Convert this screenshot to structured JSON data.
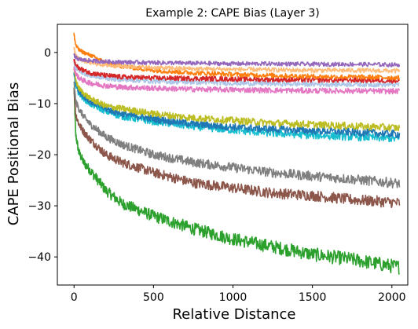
{
  "chart_data": {
    "type": "line",
    "title": "Example 2: CAPE Bias (Layer 3)",
    "xlabel": "Relative Distance",
    "ylabel": "CAPE Positional Bias",
    "xlim": [
      -105,
      2100
    ],
    "ylim": [
      -45.5,
      5.5
    ],
    "xticks": [
      0,
      500,
      1000,
      1500,
      2000
    ],
    "yticks": [
      0,
      -10,
      -20,
      -30,
      -40
    ],
    "grid": false,
    "legend": "none",
    "series": [
      {
        "color": "#2ca02c",
        "x": [
          0,
          10,
          30,
          60,
          100,
          200,
          300,
          500,
          750,
          1000,
          1250,
          1500,
          1750,
          2000,
          2048
        ],
        "y": [
          -7,
          -16,
          -19.5,
          -21.5,
          -23,
          -27,
          -29.5,
          -32,
          -34.5,
          -36.5,
          -38,
          -39.5,
          -40.5,
          -41.8,
          -42
        ]
      },
      {
        "color": "#8c564b",
        "x": [
          0,
          10,
          30,
          60,
          100,
          200,
          300,
          500,
          750,
          1000,
          1250,
          1500,
          1750,
          2000,
          2048
        ],
        "y": [
          -7,
          -12,
          -14,
          -15.5,
          -17,
          -20,
          -21.5,
          -23.5,
          -25.5,
          -26.5,
          -27.5,
          -28,
          -28.8,
          -29.3,
          -29.5
        ]
      },
      {
        "color": "#7f7f7f",
        "x": [
          0,
          10,
          30,
          60,
          100,
          200,
          300,
          500,
          750,
          1000,
          1250,
          1500,
          1750,
          2000,
          2048
        ],
        "y": [
          -6,
          -9.5,
          -11,
          -12.5,
          -14,
          -16.5,
          -18,
          -20,
          -21.5,
          -22.5,
          -23.5,
          -24.2,
          -24.8,
          -25.5,
          -25.7
        ]
      },
      {
        "color": "#17becf",
        "x": [
          0,
          10,
          30,
          60,
          100,
          200,
          300,
          500,
          750,
          1000,
          1250,
          1500,
          1750,
          2000,
          2048
        ],
        "y": [
          -4,
          -6.5,
          -8,
          -9,
          -10,
          -11.5,
          -12.5,
          -13.5,
          -14.5,
          -15.2,
          -15.8,
          -16.2,
          -16.5,
          -16.8,
          -17
        ]
      },
      {
        "color": "#1f77b4",
        "x": [
          0,
          10,
          30,
          60,
          100,
          200,
          300,
          500,
          750,
          1000,
          1250,
          1500,
          1750,
          2000,
          2048
        ],
        "y": [
          -4,
          -6,
          -7.5,
          -8.5,
          -9.5,
          -11,
          -12,
          -13,
          -14,
          -14.6,
          -15,
          -15.3,
          -15.6,
          -15.9,
          -16
        ]
      },
      {
        "color": "#bcbd22",
        "x": [
          0,
          10,
          30,
          60,
          100,
          200,
          300,
          500,
          750,
          1000,
          1250,
          1500,
          1750,
          2000,
          2048
        ],
        "y": [
          -3,
          -5.5,
          -7,
          -8,
          -9,
          -10.5,
          -11,
          -12,
          -12.8,
          -13.3,
          -13.8,
          -14.1,
          -14.4,
          -14.7,
          -14.8
        ]
      },
      {
        "color": "#e377c2",
        "x": [
          0,
          10,
          30,
          60,
          100,
          200,
          300,
          500,
          750,
          1000,
          1250,
          1500,
          1750,
          2000,
          2048
        ],
        "y": [
          -3,
          -4,
          -5,
          -5.5,
          -6,
          -6.5,
          -6.8,
          -7,
          -7.2,
          -7.3,
          -7.4,
          -7.5,
          -7.5,
          -7.6,
          -7.6
        ]
      },
      {
        "color": "#aec7e8",
        "x": [
          0,
          10,
          30,
          60,
          100,
          200,
          300,
          500,
          750,
          1000,
          1250,
          1500,
          1750,
          2000,
          2048
        ],
        "y": [
          -2,
          -3,
          -3.5,
          -4,
          -4.5,
          -5,
          -5.3,
          -5.6,
          -5.8,
          -6,
          -6.1,
          -6.2,
          -6.2,
          -6.3,
          -6.3
        ]
      },
      {
        "color": "#d62728",
        "x": [
          0,
          10,
          30,
          60,
          100,
          200,
          300,
          500,
          750,
          1000,
          1250,
          1500,
          1750,
          2000,
          2048
        ],
        "y": [
          -1.5,
          -2.5,
          -3,
          -3.5,
          -4,
          -4.5,
          -4.8,
          -5,
          -5.1,
          -5.2,
          -5.3,
          -5.4,
          -5.4,
          -5.5,
          -5.5
        ]
      },
      {
        "color": "#ff7f0e",
        "x": [
          0,
          10,
          30,
          60,
          100,
          200,
          300,
          500,
          750,
          1000,
          1250,
          1500,
          1750,
          2000,
          2048
        ],
        "y": [
          3.5,
          1.5,
          0.5,
          0,
          -0.5,
          -2,
          -2.7,
          -3.5,
          -4,
          -4.3,
          -4.5,
          -4.7,
          -4.8,
          -4.9,
          -5
        ]
      },
      {
        "color": "#ffbb78",
        "x": [
          0,
          10,
          30,
          60,
          100,
          200,
          300,
          500,
          750,
          1000,
          1250,
          1500,
          1750,
          2000,
          2048
        ],
        "y": [
          1,
          -0.5,
          -1.2,
          -1.6,
          -2,
          -2.5,
          -2.7,
          -3,
          -3.2,
          -3.3,
          -3.4,
          -3.5,
          -3.5,
          -3.6,
          -3.6
        ]
      },
      {
        "color": "#9467bd",
        "x": [
          0,
          10,
          30,
          60,
          100,
          200,
          300,
          500,
          750,
          1000,
          1250,
          1500,
          1750,
          2000,
          2048
        ],
        "y": [
          -0.5,
          -1,
          -1.3,
          -1.5,
          -1.6,
          -1.8,
          -1.9,
          -2,
          -2.1,
          -2.2,
          -2.2,
          -2.3,
          -2.3,
          -2.4,
          -2.4
        ]
      }
    ]
  }
}
